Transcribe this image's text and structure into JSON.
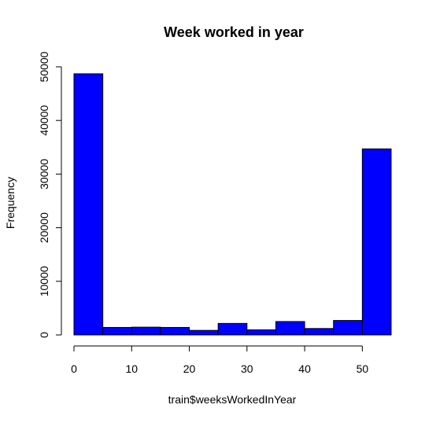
{
  "chart_data": {
    "type": "bar",
    "title": "Week worked in year",
    "xlabel": "train$weeksWorkedInYear",
    "ylabel": "Frequency",
    "bin_edges": [
      0,
      5,
      10,
      15,
      20,
      25,
      30,
      35,
      40,
      45,
      50,
      55
    ],
    "values": [
      48700,
      1400,
      1450,
      1400,
      850,
      2150,
      950,
      2500,
      1200,
      2700,
      34700
    ],
    "xlim": [
      0,
      55
    ],
    "ylim": [
      0,
      50000
    ],
    "x_ticks": [
      0,
      10,
      20,
      30,
      40,
      50
    ],
    "x_tick_labels": [
      "0",
      "10",
      "20",
      "30",
      "40",
      "50"
    ],
    "y_ticks": [
      0,
      10000,
      20000,
      30000,
      40000,
      50000
    ],
    "y_tick_labels": [
      "0",
      "10000",
      "20000",
      "30000",
      "40000",
      "50000"
    ],
    "bar_color": "#0000ff",
    "grid": false,
    "legend": "none"
  }
}
